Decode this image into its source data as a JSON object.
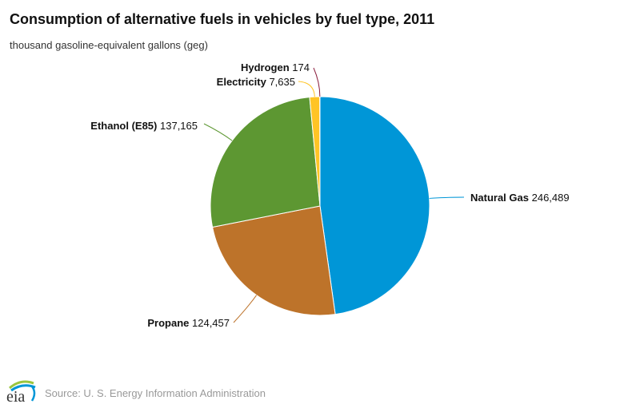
{
  "chart_data": {
    "type": "pie",
    "title": "Consumption of alternative fuels in vehicles by fuel type, 2011",
    "subtitle": "thousand gasoline-equivalent gallons (geg)",
    "start_angle": "top, clockwise",
    "slices": [
      {
        "name": "Natural Gas",
        "value": 246489,
        "value_label": "246,489",
        "color": "#0096d7"
      },
      {
        "name": "Propane",
        "value": 124457,
        "value_label": "124,457",
        "color": "#bd732a"
      },
      {
        "name": "Ethanol (E85)",
        "value": 137165,
        "value_label": "137,165",
        "color": "#5d9732"
      },
      {
        "name": "Electricity",
        "value": 7635,
        "value_label": "7,635",
        "color": "#ffc425"
      },
      {
        "name": "Hydrogen",
        "value": 174,
        "value_label": "174",
        "color": "#8b1f3f"
      }
    ]
  },
  "footer": {
    "source": "Source: U. S. Energy Information Administration",
    "logo_text": "eia"
  }
}
